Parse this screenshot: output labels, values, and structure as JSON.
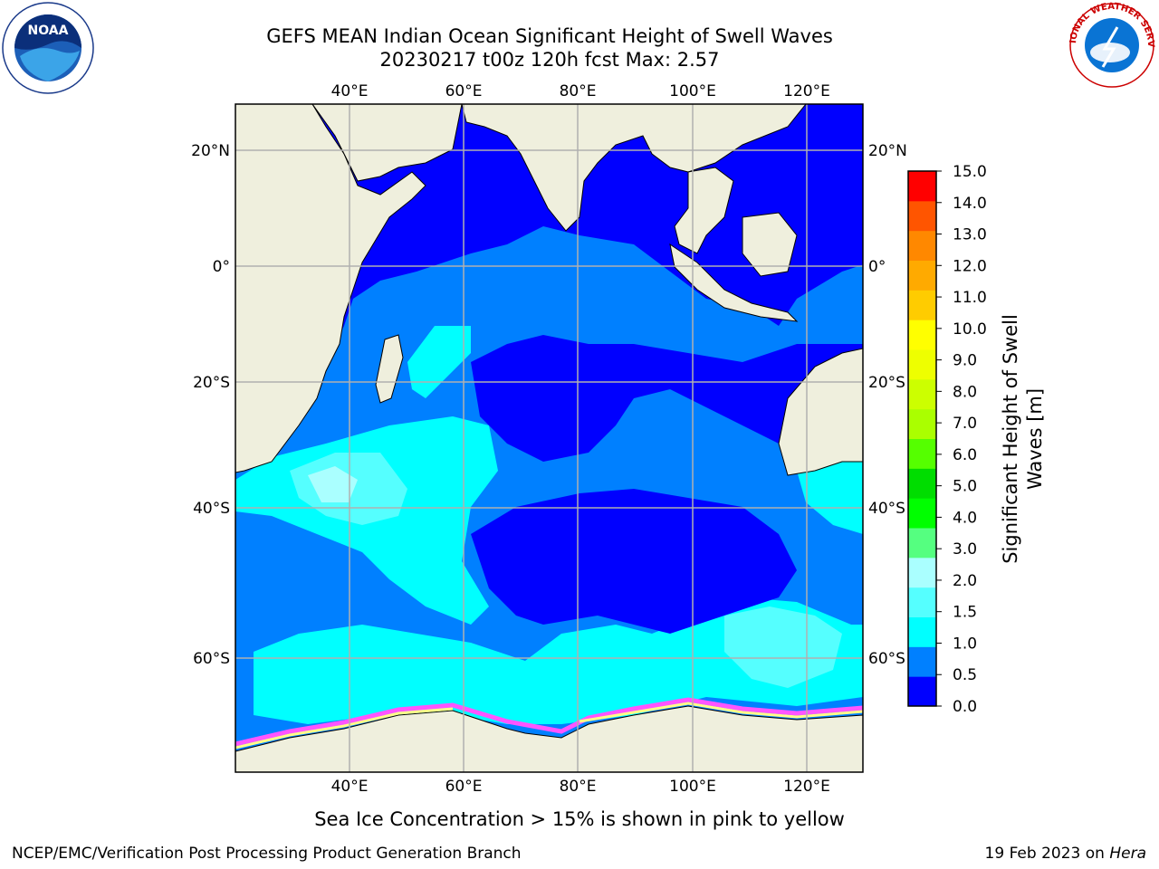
{
  "title": {
    "line1": "GEFS MEAN Indian Ocean Significant Height of Swell Waves",
    "line2": "20230217 t00z 120h fcst   Max: 2.57"
  },
  "map": {
    "lon_labels": [
      "40°E",
      "60°E",
      "80°E",
      "100°E",
      "120°E"
    ],
    "lat_labels": [
      "20°N",
      "0°",
      "20°S",
      "40°S",
      "60°S"
    ],
    "colors": {
      "land": "#efefdd",
      "ocean_0_05": "#0000ff",
      "ocean_05_10": "#0080ff",
      "ocean_10_15": "#00ffff",
      "ocean_15_20": "#55ffff",
      "ocean_20_30": "#aaffff",
      "grid": "#b0b0b0",
      "sea_ice": "#ff55ff"
    }
  },
  "colorbar": {
    "label_line1": "Significant Height of Swell",
    "label_line2": "Waves [m]",
    "ticks": [
      "15.0",
      "14.0",
      "13.0",
      "12.0",
      "11.0",
      "10.0",
      "9.0",
      "8.0",
      "7.0",
      "6.0",
      "5.0",
      "4.0",
      "3.0",
      "2.0",
      "1.5",
      "1.0",
      "0.5",
      "0.0"
    ],
    "bins": [
      {
        "color": "#0000ff"
      },
      {
        "color": "#0080ff"
      },
      {
        "color": "#00ffff"
      },
      {
        "color": "#55ffff"
      },
      {
        "color": "#aaffff"
      },
      {
        "color": "#55ff80"
      },
      {
        "color": "#00ff00"
      },
      {
        "color": "#00dd00"
      },
      {
        "color": "#55ff00"
      },
      {
        "color": "#aaff00"
      },
      {
        "color": "#ccff00"
      },
      {
        "color": "#eeff00"
      },
      {
        "color": "#ffff00"
      },
      {
        "color": "#ffcc00"
      },
      {
        "color": "#ffaa00"
      },
      {
        "color": "#ff8800"
      },
      {
        "color": "#ff5500"
      },
      {
        "color": "#ff0000"
      }
    ]
  },
  "footer": {
    "ice_note": "Sea Ice Concentration > 15% is shown in pink to yellow",
    "left": "NCEP/EMC/Verification Post Processing Product Generation Branch",
    "right_prefix": "19 Feb 2023 on ",
    "right_system": "Hera"
  },
  "logos": {
    "noaa_text": "NOAA",
    "nws_text": "NATIONAL WEATHER SERVICE"
  }
}
